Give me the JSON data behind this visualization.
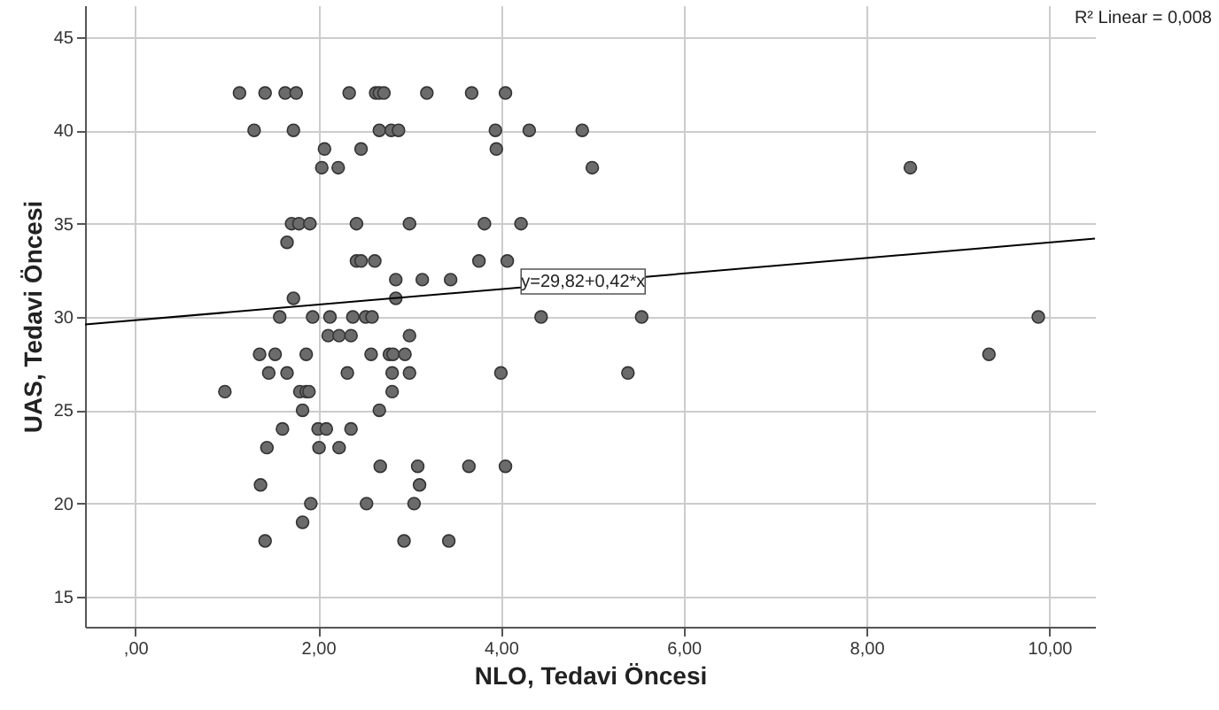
{
  "chart_data": {
    "type": "scatter",
    "xlabel": "NLO, Tedavi Öncesi",
    "ylabel": "UAS, Tedavi Öncesi",
    "xlim": [
      -0.55,
      10.5
    ],
    "ylim": [
      13.4,
      46.7
    ],
    "xticks": [
      {
        "value": 0,
        "label": ",00"
      },
      {
        "value": 2,
        "label": "2,00"
      },
      {
        "value": 4,
        "label": "4,00"
      },
      {
        "value": 6,
        "label": "6,00"
      },
      {
        "value": 8,
        "label": "8,00"
      },
      {
        "value": 10,
        "label": "10,00"
      }
    ],
    "yticks": [
      15,
      20,
      25,
      30,
      35,
      40,
      45
    ],
    "grid": true,
    "series": [
      {
        "marker": "circle",
        "color": "#6b6b6b",
        "x": [
          1.14,
          1.42,
          1.64,
          1.76,
          2.34,
          2.63,
          2.67,
          2.72,
          3.19,
          3.68,
          4.05,
          1.3,
          1.73,
          2.67,
          2.8,
          2.88,
          3.94,
          4.31,
          4.89,
          2.07,
          2.47,
          3.95,
          2.04,
          2.22,
          5.0,
          8.48,
          1.71,
          1.79,
          1.91,
          2.42,
          3.0,
          3.82,
          4.22,
          1.66,
          2.42,
          2.47,
          2.62,
          3.76,
          4.07,
          2.85,
          3.14,
          3.45,
          1.73,
          2.85,
          1.58,
          1.94,
          2.13,
          2.38,
          2.52,
          2.59,
          4.44,
          5.54,
          9.88,
          2.11,
          2.23,
          2.36,
          3.0,
          1.36,
          1.53,
          1.87,
          2.58,
          2.78,
          2.82,
          2.95,
          9.34,
          1.46,
          1.66,
          2.32,
          2.81,
          3.0,
          4.0,
          5.39,
          0.98,
          1.8,
          1.87,
          1.9,
          2.81,
          1.83,
          2.67,
          1.61,
          2.0,
          2.09,
          2.36,
          1.44,
          2.01,
          2.23,
          2.68,
          3.09,
          3.65,
          4.05,
          1.37,
          3.11,
          1.92,
          2.53,
          3.05,
          1.83,
          1.42,
          2.94,
          3.43
        ],
        "values": [
          42,
          42,
          42,
          42,
          42,
          42,
          42,
          42,
          42,
          42,
          42,
          40,
          40,
          40,
          40,
          40,
          40,
          40,
          40,
          39,
          39,
          39,
          38,
          38,
          38,
          38,
          35,
          35,
          35,
          35,
          35,
          35,
          35,
          34,
          33,
          33,
          33,
          33,
          33,
          32,
          32,
          32,
          31,
          31,
          30,
          30,
          30,
          30,
          30,
          30,
          30,
          30,
          30,
          29,
          29,
          29,
          29,
          28,
          28,
          28,
          28,
          28,
          28,
          28,
          28,
          27,
          27,
          27,
          27,
          27,
          27,
          27,
          26,
          26,
          26,
          26,
          26,
          25,
          25,
          24,
          24,
          24,
          24,
          23,
          23,
          23,
          22,
          22,
          22,
          22,
          21,
          21,
          20,
          20,
          20,
          19,
          18,
          18,
          18
        ]
      },
      {
        "type": "line",
        "color": "#000000",
        "x": [
          -0.55,
          10.5
        ],
        "values": [
          29.6,
          34.2
        ]
      }
    ],
    "annotations": [
      {
        "text": "y=29,82+0,42*x",
        "x": 4.9,
        "y": 31.9
      },
      "R² Linear = 0,008"
    ]
  }
}
